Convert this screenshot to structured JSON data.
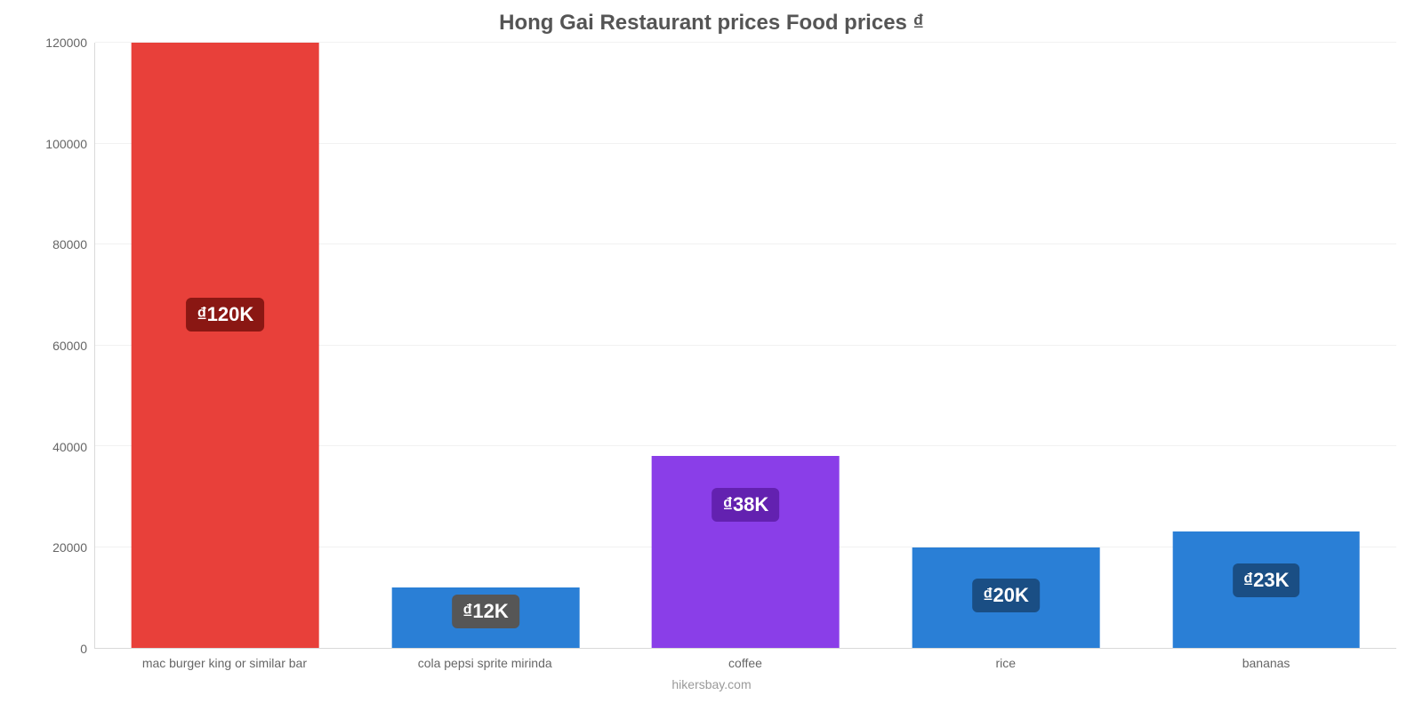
{
  "chart": {
    "type": "bar",
    "title": "Hong Gai Restaurant prices Food prices ₫",
    "title_fontsize": 24,
    "title_color": "#555555",
    "background_color": "#ffffff",
    "grid_color": "#f1f1f1",
    "axis_line_color": "#d9d9d9",
    "tick_label_color": "#666666",
    "tick_label_fontsize": 14,
    "ylim": [
      0,
      120000
    ],
    "ytick_step": 20000,
    "yticks": [
      0,
      20000,
      40000,
      60000,
      80000,
      100000,
      120000
    ],
    "bar_width_pct": 72,
    "categories": [
      "mac burger king or similar bar",
      "cola pepsi sprite mirinda",
      "coffee",
      "rice",
      "bananas"
    ],
    "values": [
      120000,
      12000,
      38000,
      20000,
      23000
    ],
    "value_labels": [
      "₫120K",
      "₫12K",
      "₫38K",
      "₫20K",
      "₫23K"
    ],
    "bar_colors": [
      "#e8403a",
      "#2a7fd6",
      "#8a3ee8",
      "#2a7fd6",
      "#2a7fd6"
    ],
    "badge_colors": [
      "#8a1713",
      "#565656",
      "#6321b0",
      "#1a4e84",
      "#1a4e84"
    ],
    "badge_text_color": "#ffffff",
    "badge_fontsize": 22,
    "attribution": "hikersbay.com",
    "attribution_color": "#9a9a9a"
  }
}
